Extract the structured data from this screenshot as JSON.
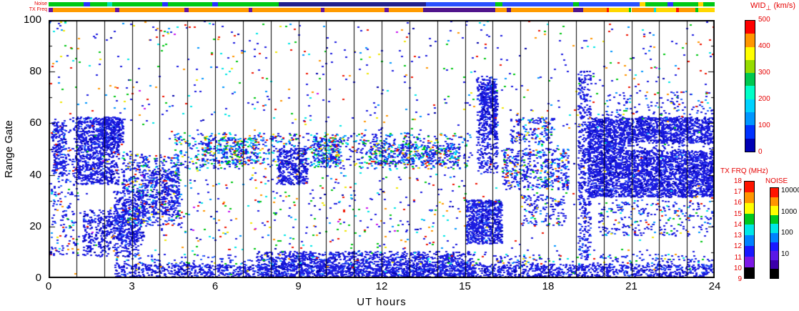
{
  "title": {
    "name": "WID",
    "sub": "⊥",
    "unit": " (km/s)"
  },
  "axes": {
    "xlabel": "UT hours",
    "ylabel": "Range Gate",
    "x_ticks": [
      "0",
      "3",
      "6",
      "9",
      "12",
      "15",
      "18",
      "21",
      "24"
    ],
    "y_ticks": [
      "100",
      "80",
      "60",
      "40",
      "20",
      "0"
    ]
  },
  "strips": {
    "noise_label": "Noise",
    "txfreq_label": "TX Freq",
    "noise_segments": [
      [
        0,
        1.25,
        "#00c814"
      ],
      [
        1.25,
        1.5,
        "#2832ff"
      ],
      [
        1.5,
        2.1,
        "#00c814"
      ],
      [
        2.1,
        2.3,
        "#00e1b4"
      ],
      [
        2.3,
        4.1,
        "#00c814"
      ],
      [
        4.1,
        4.3,
        "#2832ff"
      ],
      [
        4.3,
        5.9,
        "#00c814"
      ],
      [
        5.9,
        6.1,
        "#2832ff"
      ],
      [
        6.1,
        8.3,
        "#00c814"
      ],
      [
        8.3,
        13.6,
        "#20208c"
      ],
      [
        13.6,
        16.1,
        "#2850ff"
      ],
      [
        16.1,
        16.35,
        "#00c814"
      ],
      [
        16.35,
        18.9,
        "#2850ff"
      ],
      [
        18.9,
        19.1,
        "#00c814"
      ],
      [
        19.1,
        21.3,
        "#2850ff"
      ],
      [
        21.3,
        21.5,
        "#ffd700"
      ],
      [
        21.5,
        22.3,
        "#00c814"
      ],
      [
        22.3,
        22.5,
        "#2832ff"
      ],
      [
        22.5,
        23.4,
        "#00c814"
      ],
      [
        23.4,
        23.6,
        "#ffd700"
      ],
      [
        23.6,
        24,
        "#00c814"
      ]
    ],
    "tx_segments": [
      [
        0,
        0.15,
        "#6414a0"
      ],
      [
        0.15,
        2.4,
        "#ff9b00"
      ],
      [
        2.4,
        2.55,
        "#6414a0"
      ],
      [
        2.55,
        4.9,
        "#ff9b00"
      ],
      [
        4.9,
        5.05,
        "#6414a0"
      ],
      [
        5.05,
        7.2,
        "#ff9b00"
      ],
      [
        7.2,
        7.35,
        "#6414a0"
      ],
      [
        7.35,
        9.8,
        "#ff9b00"
      ],
      [
        9.8,
        9.95,
        "#6414a0"
      ],
      [
        9.95,
        12.1,
        "#ff9b00"
      ],
      [
        12.1,
        12.25,
        "#6414a0"
      ],
      [
        12.25,
        13.5,
        "#ff9b00"
      ],
      [
        13.5,
        16.1,
        "#50148c"
      ],
      [
        16.1,
        16.5,
        "#ff9b00"
      ],
      [
        16.5,
        16.65,
        "#50148c"
      ],
      [
        16.65,
        18.9,
        "#ff9b00"
      ],
      [
        18.9,
        19.25,
        "#50148c"
      ],
      [
        19.25,
        20.1,
        "#ff9b00"
      ],
      [
        20.1,
        20.2,
        "#ff1400"
      ],
      [
        20.2,
        20.9,
        "#ffd700"
      ],
      [
        20.9,
        21,
        "#00c814"
      ],
      [
        21,
        21.8,
        "#ff9b00"
      ],
      [
        21.8,
        21.9,
        "#00e1e1"
      ],
      [
        21.9,
        22.6,
        "#ffd700"
      ],
      [
        22.6,
        22.7,
        "#ff1400"
      ],
      [
        22.7,
        23.3,
        "#ff9b00"
      ],
      [
        23.3,
        23.4,
        "#00c814"
      ],
      [
        23.4,
        24,
        "#ffd700"
      ]
    ]
  },
  "colorbars": {
    "wid": {
      "ticks": [
        "500",
        "400",
        "300",
        "200",
        "100",
        "0"
      ],
      "colors_bottom_to_top": [
        "#0000b4",
        "#0032ff",
        "#0096ff",
        "#00d2ff",
        "#00ffc8",
        "#00c850",
        "#96dc00",
        "#ffff00",
        "#ff9600",
        "#ff0000"
      ]
    },
    "tx": {
      "label": "TX FRQ (MHz)",
      "ticks": [
        "18",
        "17",
        "16",
        "15",
        "14",
        "13",
        "12",
        "11",
        "10",
        "9"
      ],
      "colors_bottom_to_top": [
        "#000000",
        "#7d19e6",
        "#1919ff",
        "#0082ff",
        "#00e6e6",
        "#00c81e",
        "#ffff00",
        "#ff9600",
        "#ff1400"
      ]
    },
    "noise": {
      "label": "NOISE",
      "ticks": [
        "10000",
        "1000",
        "100",
        "10"
      ],
      "colors_bottom_to_top": [
        "#000000",
        "#3c00aa",
        "#5a19e6",
        "#1919ff",
        "#0082ff",
        "#00e6e6",
        "#00c81e",
        "#ffff00",
        "#ff9600",
        "#ff1400"
      ]
    }
  },
  "chart_data": {
    "type": "heatmap",
    "title": "WID_⊥ (km/s)",
    "xlabel": "UT hours",
    "ylabel": "Range Gate",
    "xlim": [
      0,
      24
    ],
    "ylim": [
      0,
      100
    ],
    "x_ticks": [
      0,
      3,
      6,
      9,
      12,
      15,
      18,
      21,
      24
    ],
    "y_ticks": [
      0,
      20,
      40,
      60,
      80,
      100
    ],
    "hour_gridlines": true,
    "gridline_interval_hours": 1,
    "color_scale": {
      "label": "WID_⊥",
      "unit": "km/s",
      "range": [
        0,
        500
      ],
      "ticks": [
        0,
        100,
        200,
        300,
        400,
        500
      ]
    },
    "aux_scales": [
      {
        "label": "TX FRQ (MHz)",
        "range": [
          9,
          18
        ]
      },
      {
        "label": "NOISE",
        "scale": "log",
        "ticks": [
          10,
          100,
          1000,
          10000
        ]
      }
    ],
    "representation": "procedural point regions approximating radar scatter; mostly low spectral width (blue) echoes",
    "seed": 20240613,
    "point_size": [
      3,
      2
    ],
    "palettes": {
      "blue": [
        [
          "#1c1ce0",
          82
        ],
        [
          "#0000aa",
          10
        ],
        [
          "#2d64ff",
          8
        ]
      ],
      "blueDense": [
        [
          "#1c1ce0",
          86
        ],
        [
          "#0000aa",
          9
        ],
        [
          "#4169ff",
          5
        ]
      ],
      "blueMix": [
        [
          "#1c1ce0",
          70
        ],
        [
          "#2d64ff",
          8
        ],
        [
          "#0096ff",
          6
        ],
        [
          "#00e6e6",
          4
        ],
        [
          "#00c814",
          4
        ],
        [
          "#f01400",
          4
        ],
        [
          "#ff9600",
          2
        ],
        [
          "#f0e600",
          2
        ]
      ],
      "midMix": [
        [
          "#1c1ce0",
          52
        ],
        [
          "#0096ff",
          12
        ],
        [
          "#00e6e6",
          11
        ],
        [
          "#00c814",
          10
        ],
        [
          "#f01400",
          5
        ],
        [
          "#ff9600",
          4
        ],
        [
          "#f0e600",
          4
        ],
        [
          "#2d64ff",
          2
        ]
      ],
      "sparse": [
        [
          "#1c1ce0",
          38
        ],
        [
          "#0096ff",
          9
        ],
        [
          "#00e6e6",
          9
        ],
        [
          "#00c814",
          13
        ],
        [
          "#f01400",
          13
        ],
        [
          "#ff9600",
          8
        ],
        [
          "#f0e600",
          5
        ],
        [
          "#c814f0",
          2
        ],
        [
          "#0000aa",
          3
        ]
      ]
    },
    "regions": [
      [
        0.05,
        1.05,
        8,
        62,
        260,
        "blueMix"
      ],
      [
        0.1,
        0.6,
        40,
        60,
        170,
        "blue"
      ],
      [
        0.95,
        2.5,
        36,
        62,
        950,
        "blue"
      ],
      [
        1.2,
        3.2,
        8,
        26,
        480,
        "blue"
      ],
      [
        2.3,
        3.4,
        14,
        34,
        300,
        "blue"
      ],
      [
        2.6,
        4.7,
        20,
        48,
        520,
        "blueMix"
      ],
      [
        3.3,
        4.7,
        24,
        42,
        300,
        "blue"
      ],
      [
        1.9,
        2.7,
        52,
        62,
        220,
        "blue"
      ],
      [
        4.5,
        15.2,
        42,
        56,
        950,
        "midMix"
      ],
      [
        5.5,
        7.5,
        44,
        54,
        250,
        "midMix"
      ],
      [
        8.2,
        9.3,
        36,
        50,
        330,
        "blue"
      ],
      [
        9.5,
        10.5,
        44,
        54,
        200,
        "midMix"
      ],
      [
        11.5,
        14.8,
        44,
        52,
        300,
        "midMix"
      ],
      [
        2.3,
        24,
        0,
        5,
        2100,
        "blue"
      ],
      [
        7.5,
        15.3,
        0,
        10,
        1300,
        "blue"
      ],
      [
        2.3,
        24,
        5,
        9,
        380,
        "blueMix"
      ],
      [
        15,
        16.3,
        13,
        30,
        750,
        "blue"
      ],
      [
        15.4,
        16.15,
        40,
        78,
        380,
        "blue"
      ],
      [
        15.5,
        16.1,
        55,
        75,
        250,
        "blue"
      ],
      [
        16.3,
        18.7,
        34,
        50,
        480,
        "blueMix"
      ],
      [
        16.6,
        18.2,
        52,
        62,
        170,
        "blueMix"
      ],
      [
        17,
        18.6,
        20,
        32,
        140,
        "blueMix"
      ],
      [
        19.05,
        19.5,
        8,
        80,
        420,
        "blue"
      ],
      [
        19.4,
        24,
        31,
        49,
        2700,
        "blueDense"
      ],
      [
        19.4,
        24,
        52,
        62,
        1500,
        "blueDense"
      ],
      [
        19.4,
        20.7,
        49,
        52,
        160,
        "blue"
      ],
      [
        20.7,
        24,
        49,
        52,
        45,
        "blue"
      ],
      [
        19.8,
        24,
        16,
        30,
        260,
        "blueMix"
      ],
      [
        20,
        24,
        62,
        72,
        130,
        "blueMix"
      ],
      [
        0,
        24,
        1,
        100,
        700,
        "sparse"
      ],
      [
        0,
        24,
        60,
        100,
        260,
        "sparse"
      ],
      [
        4,
        15,
        10,
        40,
        260,
        "sparse"
      ]
    ]
  }
}
